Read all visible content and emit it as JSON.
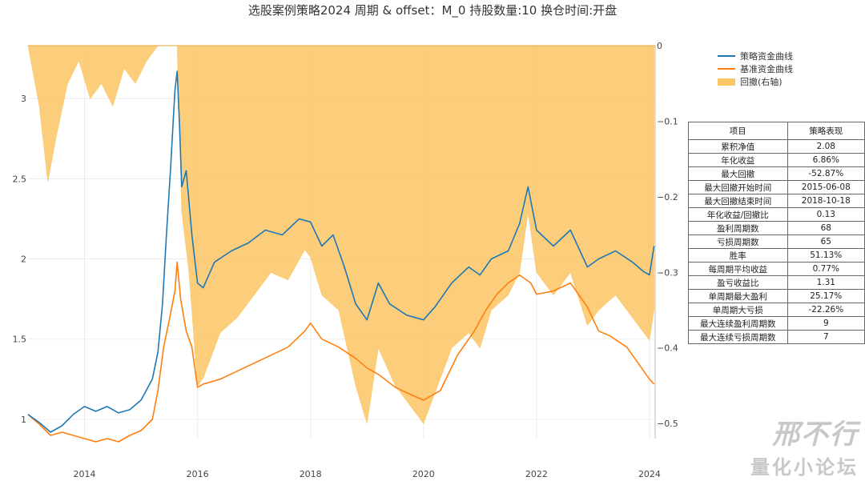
{
  "title": "选股案例策略2024 周期 & offset：M_0 持股数量:10 换仓时间:开盘",
  "legend": [
    {
      "label": "策略资金曲线",
      "color": "#1f77b4",
      "kind": "line"
    },
    {
      "label": "基准资金曲线",
      "color": "#ff7f0e",
      "kind": "line"
    },
    {
      "label": "回撤(右轴)",
      "color": "#fcc565",
      "kind": "area"
    }
  ],
  "table": {
    "headers": [
      "项目",
      "策略表现"
    ],
    "rows": [
      [
        "累积净值",
        "2.08"
      ],
      [
        "年化收益",
        "6.86%"
      ],
      [
        "最大回撤",
        "-52.87%"
      ],
      [
        "最大回撤开始时间",
        "2015-06-08"
      ],
      [
        "最大回撤结束时间",
        "2018-10-18"
      ],
      [
        "年化收益/回撤比",
        "0.13"
      ],
      [
        "盈利周期数",
        "68"
      ],
      [
        "亏损周期数",
        "65"
      ],
      [
        "胜率",
        "51.13%"
      ],
      [
        "每周期平均收益",
        "0.77%"
      ],
      [
        "盈亏收益比",
        "1.31"
      ],
      [
        "单周期最大盈利",
        "25.17%"
      ],
      [
        "单周期大亏损",
        "-22.26%"
      ],
      [
        "最大连续盈利周期数",
        "9"
      ],
      [
        "最大连续亏损周期数",
        "7"
      ]
    ]
  },
  "watermark": {
    "line1": "邢不行",
    "line2": "量化小论坛"
  },
  "chart_data": {
    "type": "line",
    "x_ticks": [
      "2014",
      "2016",
      "2018",
      "2020",
      "2022",
      "2024"
    ],
    "y_left_ticks": [
      "1",
      "1.5",
      "2",
      "2.5",
      "3"
    ],
    "y_right_ticks": [
      "0",
      "−0.1",
      "−0.2",
      "−0.3",
      "−0.4",
      "−0.5"
    ],
    "ylim_left": [
      0.88,
      3.33
    ],
    "ylim_right": [
      -0.52,
      0.0
    ],
    "xlim": [
      2013.0,
      2024.1
    ],
    "grid": true,
    "legend_position": "top-right",
    "series": [
      {
        "name": "策略资金曲线",
        "axis": "left",
        "color": "#1f77b4",
        "points": [
          [
            2013.0,
            1.03
          ],
          [
            2013.2,
            0.98
          ],
          [
            2013.4,
            0.92
          ],
          [
            2013.6,
            0.96
          ],
          [
            2013.8,
            1.03
          ],
          [
            2014.0,
            1.08
          ],
          [
            2014.2,
            1.05
          ],
          [
            2014.4,
            1.08
          ],
          [
            2014.6,
            1.04
          ],
          [
            2014.8,
            1.06
          ],
          [
            2015.0,
            1.12
          ],
          [
            2015.2,
            1.25
          ],
          [
            2015.3,
            1.42
          ],
          [
            2015.38,
            1.72
          ],
          [
            2015.45,
            2.15
          ],
          [
            2015.52,
            2.55
          ],
          [
            2015.6,
            3.05
          ],
          [
            2015.64,
            3.17
          ],
          [
            2015.68,
            2.85
          ],
          [
            2015.72,
            2.45
          ],
          [
            2015.8,
            2.55
          ],
          [
            2015.9,
            2.15
          ],
          [
            2016.0,
            1.85
          ],
          [
            2016.1,
            1.82
          ],
          [
            2016.3,
            1.98
          ],
          [
            2016.6,
            2.05
          ],
          [
            2016.9,
            2.1
          ],
          [
            2017.2,
            2.18
          ],
          [
            2017.5,
            2.15
          ],
          [
            2017.8,
            2.25
          ],
          [
            2018.0,
            2.23
          ],
          [
            2018.2,
            2.08
          ],
          [
            2018.4,
            2.15
          ],
          [
            2018.6,
            1.95
          ],
          [
            2018.8,
            1.72
          ],
          [
            2019.0,
            1.62
          ],
          [
            2019.2,
            1.85
          ],
          [
            2019.4,
            1.72
          ],
          [
            2019.7,
            1.65
          ],
          [
            2020.0,
            1.62
          ],
          [
            2020.2,
            1.7
          ],
          [
            2020.5,
            1.85
          ],
          [
            2020.8,
            1.95
          ],
          [
            2021.0,
            1.9
          ],
          [
            2021.2,
            2.0
          ],
          [
            2021.5,
            2.05
          ],
          [
            2021.7,
            2.22
          ],
          [
            2021.85,
            2.45
          ],
          [
            2022.0,
            2.18
          ],
          [
            2022.3,
            2.08
          ],
          [
            2022.6,
            2.18
          ],
          [
            2022.9,
            1.95
          ],
          [
            2023.1,
            2.0
          ],
          [
            2023.4,
            2.05
          ],
          [
            2023.7,
            1.98
          ],
          [
            2023.9,
            1.92
          ],
          [
            2024.0,
            1.9
          ],
          [
            2024.08,
            2.08
          ]
        ]
      },
      {
        "name": "基准资金曲线",
        "axis": "left",
        "color": "#ff7f0e",
        "points": [
          [
            2013.0,
            1.03
          ],
          [
            2013.2,
            0.97
          ],
          [
            2013.4,
            0.9
          ],
          [
            2013.6,
            0.92
          ],
          [
            2013.8,
            0.9
          ],
          [
            2014.0,
            0.88
          ],
          [
            2014.2,
            0.86
          ],
          [
            2014.4,
            0.88
          ],
          [
            2014.6,
            0.86
          ],
          [
            2014.8,
            0.9
          ],
          [
            2015.0,
            0.93
          ],
          [
            2015.2,
            1.0
          ],
          [
            2015.3,
            1.18
          ],
          [
            2015.4,
            1.45
          ],
          [
            2015.5,
            1.62
          ],
          [
            2015.6,
            1.8
          ],
          [
            2015.64,
            1.98
          ],
          [
            2015.7,
            1.75
          ],
          [
            2015.8,
            1.55
          ],
          [
            2015.9,
            1.45
          ],
          [
            2016.0,
            1.2
          ],
          [
            2016.1,
            1.22
          ],
          [
            2016.4,
            1.25
          ],
          [
            2016.7,
            1.3
          ],
          [
            2017.0,
            1.35
          ],
          [
            2017.3,
            1.4
          ],
          [
            2017.6,
            1.45
          ],
          [
            2017.9,
            1.55
          ],
          [
            2018.0,
            1.6
          ],
          [
            2018.2,
            1.5
          ],
          [
            2018.5,
            1.45
          ],
          [
            2018.8,
            1.38
          ],
          [
            2019.0,
            1.32
          ],
          [
            2019.2,
            1.28
          ],
          [
            2019.5,
            1.2
          ],
          [
            2019.8,
            1.15
          ],
          [
            2020.0,
            1.12
          ],
          [
            2020.3,
            1.18
          ],
          [
            2020.6,
            1.4
          ],
          [
            2020.9,
            1.55
          ],
          [
            2021.1,
            1.68
          ],
          [
            2021.3,
            1.78
          ],
          [
            2021.5,
            1.85
          ],
          [
            2021.7,
            1.9
          ],
          [
            2021.9,
            1.85
          ],
          [
            2022.0,
            1.78
          ],
          [
            2022.3,
            1.8
          ],
          [
            2022.6,
            1.85
          ],
          [
            2022.9,
            1.7
          ],
          [
            2023.1,
            1.55
          ],
          [
            2023.3,
            1.52
          ],
          [
            2023.6,
            1.45
          ],
          [
            2023.8,
            1.35
          ],
          [
            2024.0,
            1.25
          ],
          [
            2024.08,
            1.22
          ]
        ]
      },
      {
        "name": "回撤(右轴)",
        "axis": "right",
        "color": "#fcc565",
        "points": [
          [
            2013.0,
            0.0
          ],
          [
            2013.2,
            -0.08
          ],
          [
            2013.35,
            -0.18
          ],
          [
            2013.5,
            -0.12
          ],
          [
            2013.7,
            -0.05
          ],
          [
            2013.9,
            -0.02
          ],
          [
            2014.1,
            -0.07
          ],
          [
            2014.3,
            -0.05
          ],
          [
            2014.5,
            -0.08
          ],
          [
            2014.7,
            -0.03
          ],
          [
            2014.9,
            -0.05
          ],
          [
            2015.1,
            -0.02
          ],
          [
            2015.3,
            0.0
          ],
          [
            2015.64,
            0.0
          ],
          [
            2015.72,
            -0.22
          ],
          [
            2015.85,
            -0.3
          ],
          [
            2016.0,
            -0.45
          ],
          [
            2016.1,
            -0.44
          ],
          [
            2016.4,
            -0.38
          ],
          [
            2016.7,
            -0.36
          ],
          [
            2017.0,
            -0.33
          ],
          [
            2017.3,
            -0.3
          ],
          [
            2017.6,
            -0.31
          ],
          [
            2017.9,
            -0.27
          ],
          [
            2018.0,
            -0.28
          ],
          [
            2018.2,
            -0.33
          ],
          [
            2018.5,
            -0.35
          ],
          [
            2018.8,
            -0.45
          ],
          [
            2019.0,
            -0.5
          ],
          [
            2019.2,
            -0.4
          ],
          [
            2019.5,
            -0.45
          ],
          [
            2019.8,
            -0.48
          ],
          [
            2020.0,
            -0.5
          ],
          [
            2020.2,
            -0.46
          ],
          [
            2020.5,
            -0.4
          ],
          [
            2020.8,
            -0.38
          ],
          [
            2021.0,
            -0.4
          ],
          [
            2021.2,
            -0.35
          ],
          [
            2021.5,
            -0.33
          ],
          [
            2021.7,
            -0.3
          ],
          [
            2021.85,
            -0.22
          ],
          [
            2022.0,
            -0.3
          ],
          [
            2022.3,
            -0.33
          ],
          [
            2022.6,
            -0.3
          ],
          [
            2022.9,
            -0.37
          ],
          [
            2023.1,
            -0.35
          ],
          [
            2023.4,
            -0.33
          ],
          [
            2023.7,
            -0.36
          ],
          [
            2023.9,
            -0.38
          ],
          [
            2024.0,
            -0.39
          ],
          [
            2024.08,
            -0.35
          ]
        ]
      }
    ]
  }
}
